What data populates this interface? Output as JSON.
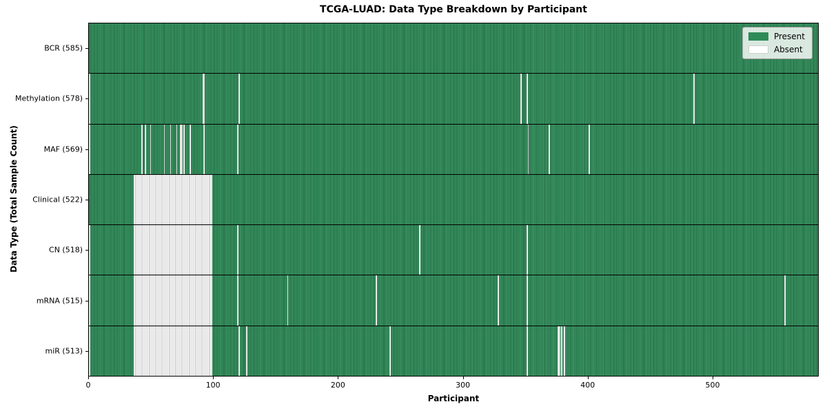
{
  "figure": {
    "background": "#ffffff"
  },
  "chart_data": {
    "type": "heatmap",
    "title": "TCGA-LUAD: Data Type Breakdown by Participant",
    "xlabel": "Participant",
    "ylabel": "Data Type (Total Sample Count)",
    "n_participants": 585,
    "x_ticks": [
      0,
      100,
      200,
      300,
      400,
      500
    ],
    "grid": false,
    "colors": {
      "present": "#2e8b57",
      "present_dark_stripe": "#1f6240",
      "present_light_stripe": "#48a06c",
      "absent": "#ffffff",
      "absent_stripe": "#a8a8a8"
    },
    "legend": {
      "position": "upper right",
      "entries": [
        {
          "label": "Present",
          "color": "#2e8b57"
        },
        {
          "label": "Absent",
          "color": "#ffffff"
        }
      ]
    },
    "rows": [
      {
        "name": "BCR",
        "label": "BCR (585)",
        "present_count": 585,
        "absent_ranges": []
      },
      {
        "name": "Methylation",
        "label": "Methylation (578)",
        "present_count": 578,
        "absent_ranges": [
          [
            0,
            1
          ],
          [
            91,
            2
          ],
          [
            120,
            1
          ],
          [
            346,
            1
          ],
          [
            351,
            1
          ],
          [
            485,
            1
          ]
        ]
      },
      {
        "name": "MAF",
        "label": "MAF (569)",
        "present_count": 569,
        "absent_ranges": [
          [
            0,
            1
          ],
          [
            42,
            1
          ],
          [
            45,
            1
          ],
          [
            49,
            1
          ],
          [
            60,
            1
          ],
          [
            65,
            1
          ],
          [
            70,
            1
          ],
          [
            73,
            2
          ],
          [
            76,
            1
          ],
          [
            81,
            1
          ],
          [
            92,
            1
          ],
          [
            119,
            1
          ],
          [
            352,
            1
          ],
          [
            369,
            1
          ],
          [
            401,
            1
          ]
        ]
      },
      {
        "name": "Clinical",
        "label": "Clinical (522)",
        "present_count": 522,
        "absent_ranges": [
          [
            36,
            63
          ]
        ]
      },
      {
        "name": "CN",
        "label": "CN (518)",
        "present_count": 518,
        "absent_ranges": [
          [
            0,
            1
          ],
          [
            36,
            63
          ],
          [
            119,
            1
          ],
          [
            265,
            1
          ],
          [
            351,
            1
          ]
        ]
      },
      {
        "name": "mRNA",
        "label": "mRNA (515)",
        "present_count": 515,
        "absent_ranges": [
          [
            0,
            1
          ],
          [
            36,
            63
          ],
          [
            119,
            1
          ],
          [
            159,
            1
          ],
          [
            230,
            1
          ],
          [
            328,
            1
          ],
          [
            351,
            1
          ],
          [
            558,
            1
          ]
        ]
      },
      {
        "name": "miR",
        "label": "miR (513)",
        "present_count": 513,
        "absent_ranges": [
          [
            0,
            1
          ],
          [
            36,
            63
          ],
          [
            120,
            1
          ],
          [
            126,
            1
          ],
          [
            241,
            1
          ],
          [
            351,
            1
          ],
          [
            376,
            2
          ],
          [
            379,
            1
          ],
          [
            381,
            1
          ]
        ]
      }
    ]
  }
}
